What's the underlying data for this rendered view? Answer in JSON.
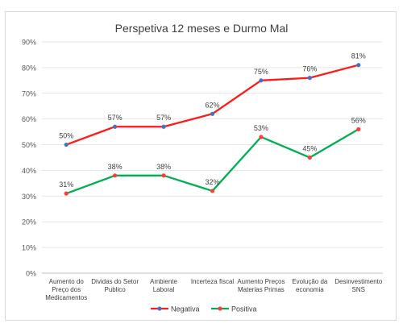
{
  "chart_data": {
    "type": "line",
    "title": "Perspetiva 12 meses e Durmo Mal",
    "categories": [
      [
        "Aumento do",
        "Preço dos",
        "Medicamentos"
      ],
      [
        "Dividas do Setor",
        "Publico"
      ],
      [
        "Ambiente",
        "Laboral"
      ],
      [
        "Incerteza fiscal"
      ],
      [
        "Aumento Preços",
        "Materias Primas"
      ],
      [
        "Evolução da",
        "economia"
      ],
      [
        "Desinvestimento",
        "SNS"
      ]
    ],
    "ylim": [
      0,
      90
    ],
    "y_ticks": [
      0,
      10,
      20,
      30,
      40,
      50,
      60,
      70,
      80,
      90
    ],
    "y_tick_labels": [
      "0%",
      "10%",
      "20%",
      "30%",
      "40%",
      "50%",
      "60%",
      "70%",
      "80%",
      "90%"
    ],
    "grid": true,
    "legend_position": "bottom",
    "series": [
      {
        "name": "Negativa",
        "values": [
          50,
          57,
          57,
          62,
          75,
          76,
          81
        ],
        "labels": [
          "50%",
          "57%",
          "57%",
          "62%",
          "75%",
          "76%",
          "81%"
        ],
        "line_color": "#ff1a1a",
        "marker_color": "#4472c4"
      },
      {
        "name": "Positiva",
        "values": [
          31,
          38,
          38,
          32,
          53,
          45,
          56
        ],
        "labels": [
          "31%",
          "38%",
          "38%",
          "32%",
          "53%",
          "45%",
          "56%"
        ],
        "line_color": "#00b050",
        "marker_color": "#ff3b3b"
      }
    ]
  }
}
